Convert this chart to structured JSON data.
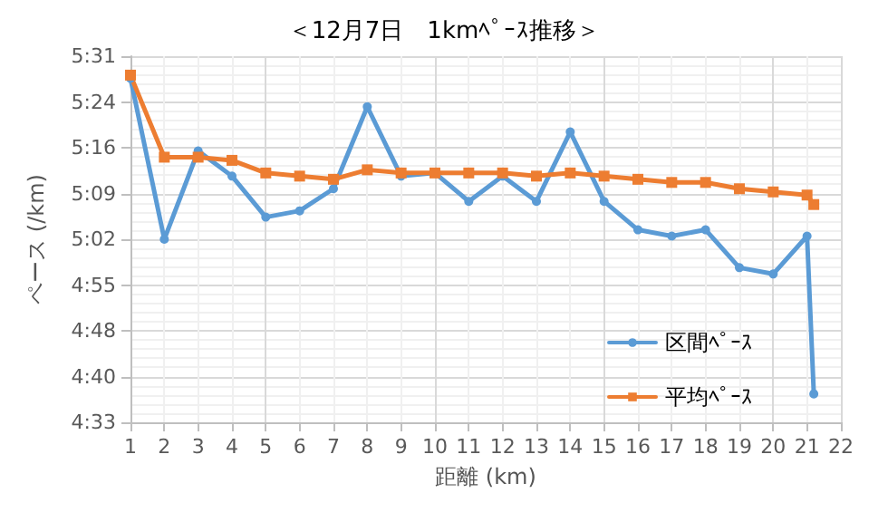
{
  "chart_data": {
    "type": "line",
    "title": "＜12月7日　1kmﾍﾟｰｽ推移＞",
    "xlabel": "距離 (km)",
    "ylabel": "ペース (/km)",
    "x": [
      1,
      2,
      3,
      4,
      5,
      6,
      7,
      8,
      9,
      10,
      11,
      12,
      13,
      14,
      15,
      16,
      17,
      18,
      19,
      20,
      21,
      21.2
    ],
    "series": [
      {
        "name": "区間ﾍﾟｰｽ",
        "color": "#5b9bd5",
        "marker": "circle",
        "values": [
          327.5,
          302,
          316,
          312,
          305.5,
          306.5,
          310,
          323,
          312,
          312.5,
          308,
          312,
          308,
          319,
          308,
          303.5,
          302.5,
          303.5,
          297.5,
          296.5,
          302.5,
          277.5
        ]
      },
      {
        "name": "平均ﾍﾟｰｽ",
        "color": "#ed7d31",
        "marker": "square",
        "values": [
          328,
          315,
          315,
          314.5,
          312.5,
          312,
          311.5,
          313,
          312.5,
          312.5,
          312.5,
          312.5,
          312,
          312.5,
          312,
          311.5,
          311,
          311,
          310,
          309.5,
          309,
          307.5
        ]
      }
    ],
    "xlim": [
      1,
      22
    ],
    "xticks": [
      1,
      2,
      3,
      4,
      5,
      6,
      7,
      8,
      9,
      10,
      11,
      12,
      13,
      14,
      15,
      16,
      17,
      18,
      19,
      20,
      21,
      22
    ],
    "ylim": [
      273,
      331
    ],
    "yticks": [
      {
        "value": 273,
        "label": "4:33"
      },
      {
        "value": 280.25,
        "label": "4:40"
      },
      {
        "value": 287.5,
        "label": "4:48"
      },
      {
        "value": 294.75,
        "label": "4:55"
      },
      {
        "value": 302,
        "label": "5:02"
      },
      {
        "value": 309.25,
        "label": "5:09"
      },
      {
        "value": 316.5,
        "label": "5:16"
      },
      {
        "value": 323.75,
        "label": "5:24"
      },
      {
        "value": 331,
        "label": "5:31"
      }
    ],
    "grid": true,
    "legend": "bottom right",
    "line_style": "solid"
  }
}
